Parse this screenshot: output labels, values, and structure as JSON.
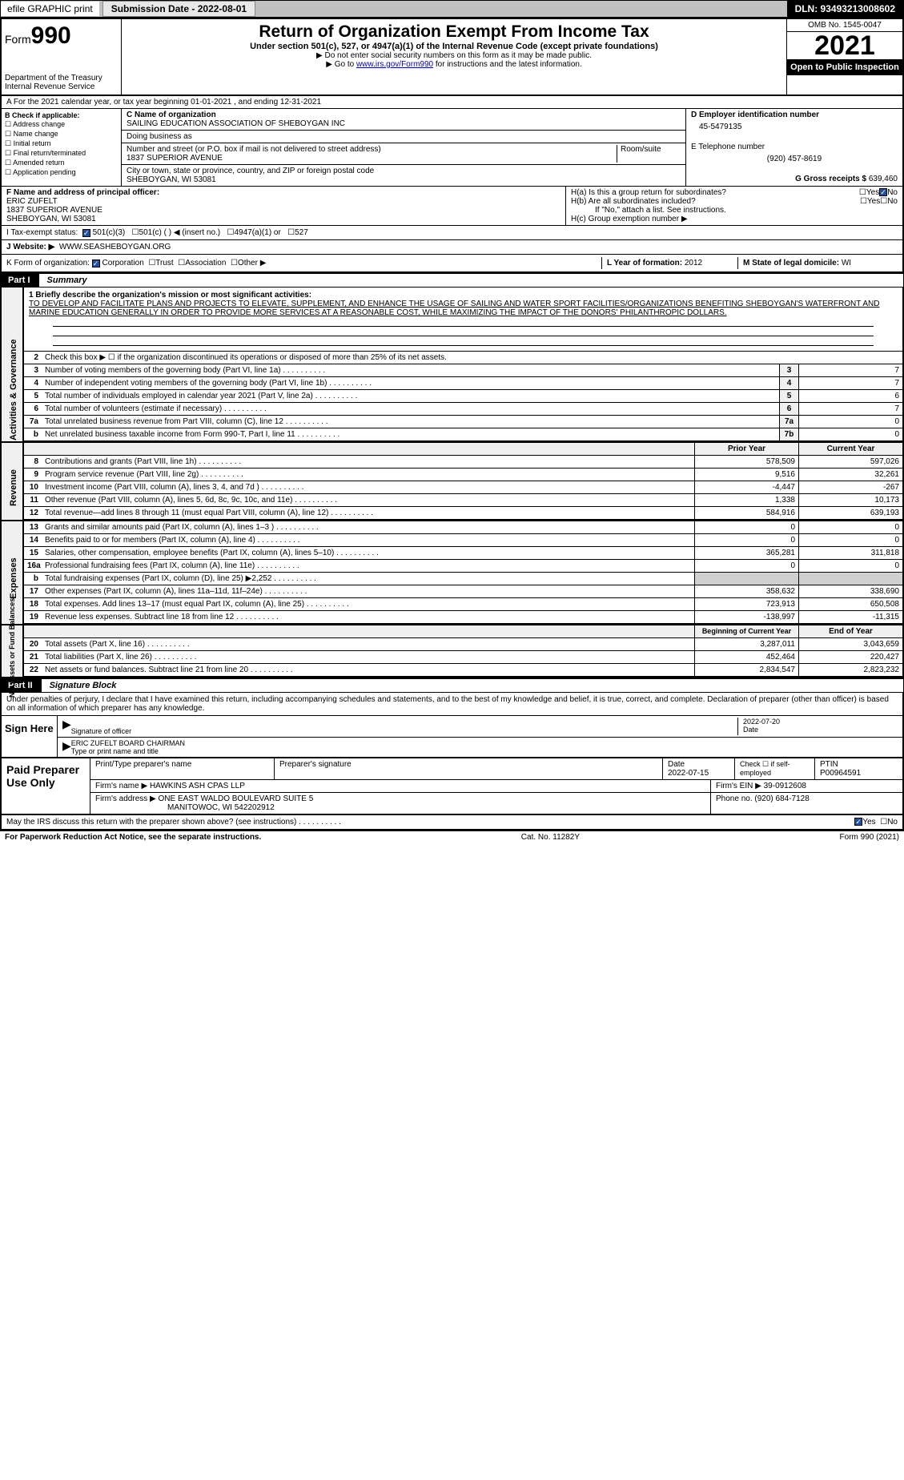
{
  "topbar": {
    "efile": "efile GRAPHIC print",
    "submission_btn": "Submission Date - 2022-08-01",
    "dln": "DLN: 93493213008602"
  },
  "header": {
    "form_prefix": "Form",
    "form_no": "990",
    "dept": "Department of the Treasury",
    "irs": "Internal Revenue Service",
    "title": "Return of Organization Exempt From Income Tax",
    "sub": "Under section 501(c), 527, or 4947(a)(1) of the Internal Revenue Code (except private foundations)",
    "note1": "▶ Do not enter social security numbers on this form as it may be made public.",
    "note2_a": "▶ Go to ",
    "note2_link": "www.irs.gov/Form990",
    "note2_b": " for instructions and the latest information.",
    "omb": "OMB No. 1545-0047",
    "year": "2021",
    "open": "Open to Public Inspection"
  },
  "row_a": "A For the 2021 calendar year, or tax year beginning 01-01-2021    , and ending 12-31-2021",
  "col_b": {
    "hdr": "B Check if applicable:",
    "i1": "Address change",
    "i2": "Name change",
    "i3": "Initial return",
    "i4": "Final return/terminated",
    "i5": "Amended return",
    "i6": "Application pending"
  },
  "col_c": {
    "name_lbl": "C Name of organization",
    "name": "SAILING EDUCATION ASSOCIATION OF SHEBOYGAN INC",
    "dba_lbl": "Doing business as",
    "street_lbl": "Number and street (or P.O. box if mail is not delivered to street address)",
    "room_lbl": "Room/suite",
    "street": "1837 SUPERIOR AVENUE",
    "city_lbl": "City or town, state or province, country, and ZIP or foreign postal code",
    "city": "SHEBOYGAN, WI  53081"
  },
  "col_d": {
    "ein_lbl": "D Employer identification number",
    "ein": "45-5479135",
    "tel_lbl": "E Telephone number",
    "tel": "(920) 457-8619",
    "gross_lbl": "G Gross receipts $",
    "gross": "639,460"
  },
  "col_f": {
    "lbl": "F Name and address of principal officer:",
    "name": "ERIC ZUFELT",
    "addr1": "1837 SUPERIOR AVENUE",
    "addr2": "SHEBOYGAN, WI  53081"
  },
  "col_h": {
    "ha": "H(a)  Is this a group return for subordinates?",
    "hb": "H(b)  Are all subordinates included?",
    "hb_note": "If \"No,\" attach a list. See instructions.",
    "hc": "H(c)  Group exemption number ▶",
    "yes": "Yes",
    "no": "No"
  },
  "status": {
    "lbl": "I   Tax-exempt status:",
    "o1": "501(c)(3)",
    "o2": "501(c) (  ) ◀ (insert no.)",
    "o3": "4947(a)(1) or",
    "o4": "527"
  },
  "website": {
    "lbl": "J   Website: ▶",
    "val": "WWW.SEASHEBOYGAN.ORG"
  },
  "row_k": {
    "lbl": "K Form of organization:",
    "o1": "Corporation",
    "o2": "Trust",
    "o3": "Association",
    "o4": "Other ▶",
    "l_lbl": "L Year of formation:",
    "l_val": "2012",
    "m_lbl": "M State of legal domicile:",
    "m_val": "WI"
  },
  "part1": {
    "pt": "Part I",
    "pn": "Summary"
  },
  "mission": {
    "lbl": "1  Briefly describe the organization's mission or most significant activities:",
    "txt": "TO DEVELOP AND FACILITATE PLANS AND PROJECTS TO ELEVATE, SUPPLEMENT, AND ENHANCE THE USAGE OF SAILING AND WATER SPORT FACILITIES/ORGANIZATIONS BENEFITING SHEBOYGAN'S WATERFRONT AND MARINE EDUCATION GENERALLY IN ORDER TO PROVIDE MORE SERVICES AT A REASONABLE COST, WHILE MAXIMIZING THE IMPACT OF THE DONORS' PHILANTHROPIC DOLLARS."
  },
  "line2": "Check this box ▶ ☐  if the organization discontinued its operations or disposed of more than 25% of its net assets.",
  "lines_gov": [
    {
      "n": "3",
      "d": "Number of voting members of the governing body (Part VI, line 1a)",
      "b": "3",
      "v": "7"
    },
    {
      "n": "4",
      "d": "Number of independent voting members of the governing body (Part VI, line 1b)",
      "b": "4",
      "v": "7"
    },
    {
      "n": "5",
      "d": "Total number of individuals employed in calendar year 2021 (Part V, line 2a)",
      "b": "5",
      "v": "6"
    },
    {
      "n": "6",
      "d": "Total number of volunteers (estimate if necessary)",
      "b": "6",
      "v": "7"
    },
    {
      "n": "7a",
      "d": "Total unrelated business revenue from Part VIII, column (C), line 12",
      "b": "7a",
      "v": "0"
    },
    {
      "n": "b",
      "d": "Net unrelated business taxable income from Form 990-T, Part I, line 11",
      "b": "7b",
      "v": "0"
    }
  ],
  "hdr_py": "Prior Year",
  "hdr_cy": "Current Year",
  "lines_rev": [
    {
      "n": "8",
      "d": "Contributions and grants (Part VIII, line 1h)",
      "py": "578,509",
      "cy": "597,026"
    },
    {
      "n": "9",
      "d": "Program service revenue (Part VIII, line 2g)",
      "py": "9,516",
      "cy": "32,261"
    },
    {
      "n": "10",
      "d": "Investment income (Part VIII, column (A), lines 3, 4, and 7d )",
      "py": "-4,447",
      "cy": "-267"
    },
    {
      "n": "11",
      "d": "Other revenue (Part VIII, column (A), lines 5, 6d, 8c, 9c, 10c, and 11e)",
      "py": "1,338",
      "cy": "10,173"
    },
    {
      "n": "12",
      "d": "Total revenue—add lines 8 through 11 (must equal Part VIII, column (A), line 12)",
      "py": "584,916",
      "cy": "639,193"
    }
  ],
  "lines_exp": [
    {
      "n": "13",
      "d": "Grants and similar amounts paid (Part IX, column (A), lines 1–3 )",
      "py": "0",
      "cy": "0"
    },
    {
      "n": "14",
      "d": "Benefits paid to or for members (Part IX, column (A), line 4)",
      "py": "0",
      "cy": "0"
    },
    {
      "n": "15",
      "d": "Salaries, other compensation, employee benefits (Part IX, column (A), lines 5–10)",
      "py": "365,281",
      "cy": "311,818"
    },
    {
      "n": "16a",
      "d": "Professional fundraising fees (Part IX, column (A), line 11e)",
      "py": "0",
      "cy": "0"
    },
    {
      "n": "b",
      "d": "Total fundraising expenses (Part IX, column (D), line 25) ▶2,252",
      "py": "",
      "cy": "",
      "grey": true
    },
    {
      "n": "17",
      "d": "Other expenses (Part IX, column (A), lines 11a–11d, 11f–24e)",
      "py": "358,632",
      "cy": "338,690"
    },
    {
      "n": "18",
      "d": "Total expenses. Add lines 13–17 (must equal Part IX, column (A), line 25)",
      "py": "723,913",
      "cy": "650,508"
    },
    {
      "n": "19",
      "d": "Revenue less expenses. Subtract line 18 from line 12",
      "py": "-138,997",
      "cy": "-11,315"
    }
  ],
  "hdr_by": "Beginning of Current Year",
  "hdr_ey": "End of Year",
  "lines_na": [
    {
      "n": "20",
      "d": "Total assets (Part X, line 16)",
      "py": "3,287,011",
      "cy": "3,043,659"
    },
    {
      "n": "21",
      "d": "Total liabilities (Part X, line 26)",
      "py": "452,464",
      "cy": "220,427"
    },
    {
      "n": "22",
      "d": "Net assets or fund balances. Subtract line 21 from line 20",
      "py": "2,834,547",
      "cy": "2,823,232"
    }
  ],
  "tabs": {
    "gov": "Activities & Governance",
    "rev": "Revenue",
    "exp": "Expenses",
    "na": "Net Assets or Fund Balances"
  },
  "part2": {
    "pt": "Part II",
    "pn": "Signature Block"
  },
  "sig": {
    "decl": "Under penalties of perjury, I declare that I have examined this return, including accompanying schedules and statements, and to the best of my knowledge and belief, it is true, correct, and complete. Declaration of preparer (other than officer) is based on all information of which preparer has any knowledge.",
    "here": "Sign Here",
    "sig_lbl": "Signature of officer",
    "date_lbl": "Date",
    "date": "2022-07-20",
    "name": "ERIC ZUFELT  BOARD CHAIRMAN",
    "name_lbl": "Type or print name and title"
  },
  "prep": {
    "hdr": "Paid Preparer Use Only",
    "c1": "Print/Type preparer's name",
    "c2": "Preparer's signature",
    "c3_lbl": "Date",
    "c3": "2022-07-15",
    "c4": "Check ☐ if self-employed",
    "c5_lbl": "PTIN",
    "c5": "P00964591",
    "firm_lbl": "Firm's name    ▶",
    "firm": "HAWKINS ASH CPAS LLP",
    "ein_lbl": "Firm's EIN ▶",
    "ein": "39-0912608",
    "addr_lbl": "Firm's address ▶",
    "addr1": "ONE EAST WALDO BOULEVARD SUITE 5",
    "addr2": "MANITOWOC, WI  542202912",
    "phone_lbl": "Phone no.",
    "phone": "(920) 684-7128"
  },
  "discuss": {
    "q": "May the IRS discuss this return with the preparer shown above? (see instructions)",
    "yes": "Yes",
    "no": "No"
  },
  "footer": {
    "l": "For Paperwork Reduction Act Notice, see the separate instructions.",
    "m": "Cat. No. 11282Y",
    "r": "Form 990 (2021)"
  }
}
